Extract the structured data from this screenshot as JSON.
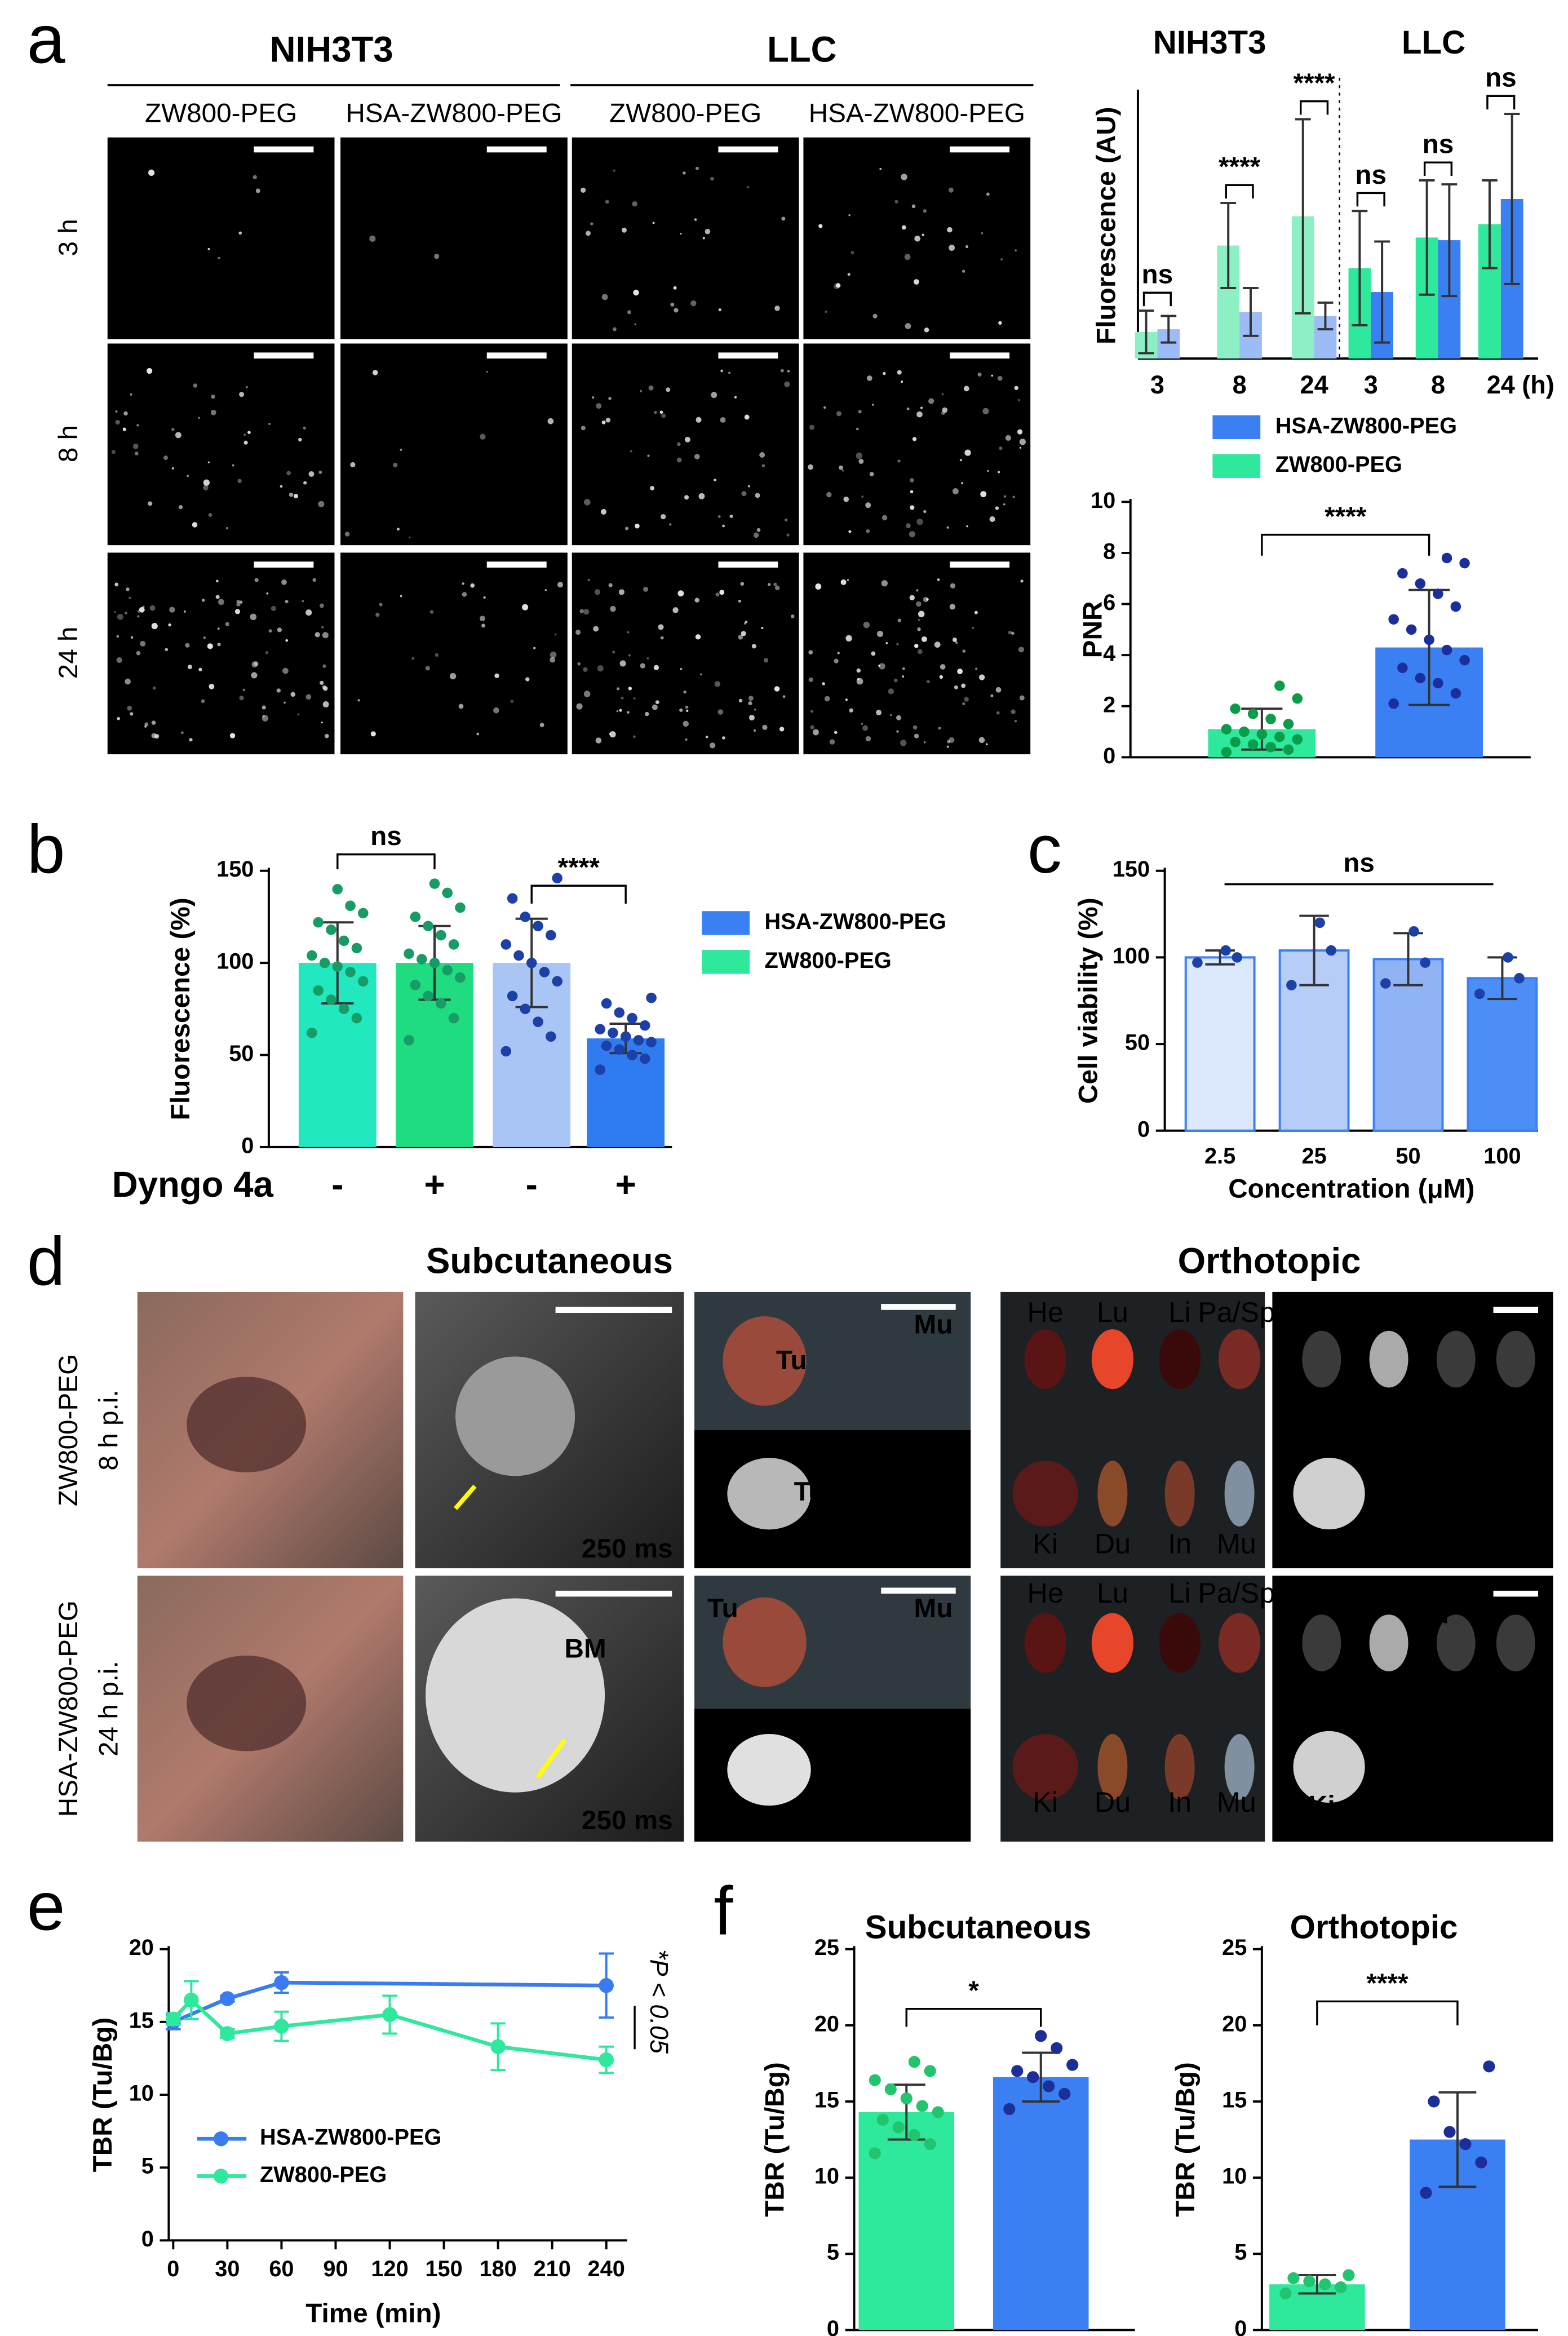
{
  "panel_labels": [
    "a",
    "b",
    "c",
    "d",
    "e",
    "f"
  ],
  "microscopy": {
    "groups": [
      "NIH3T3",
      "LLC"
    ],
    "columns": [
      "ZW800-PEG",
      "HSA-ZW800-PEG",
      "ZW800-PEG",
      "HSA-ZW800-PEG"
    ],
    "rows": [
      "3 h",
      "8 h",
      "24 h"
    ]
  },
  "imaging": {
    "titles": [
      "Subcutaneous",
      "Orthotopic"
    ],
    "rows": [
      [
        "ZW800-PEG",
        "8 h p.i."
      ],
      [
        "HSA-ZW800-PEG",
        "24 h p.i."
      ]
    ],
    "exposure": "250 ms",
    "tumor": "Tu",
    "bone_marrow": "BM",
    "organs": [
      "He",
      "Lu",
      "Li",
      "Pa/Sp",
      "Ki",
      "Du",
      "In",
      "Mu"
    ]
  },
  "chart_data": [
    {
      "type": "bar",
      "groups": [
        "NIH3T3",
        "LLC"
      ],
      "categories": [
        "3",
        "8",
        "24",
        "3",
        "8",
        "24"
      ],
      "x_unit": "(h)",
      "ylabel": "Fluorescence (AU)",
      "ylim": [
        0,
        2
      ],
      "series": [
        {
          "name": "ZW800-PEG",
          "color": "#2ee89c",
          "colors": [
            "#8df0c4",
            "#8df0c4",
            "#8df0c4",
            "#2ee89c",
            "#2ee89c",
            "#2ee89c"
          ],
          "values": [
            0.2,
            0.85,
            1.07,
            0.68,
            0.91,
            1.01
          ],
          "errors": [
            0.16,
            0.32,
            0.73,
            0.43,
            0.43,
            0.33
          ]
        },
        {
          "name": "HSA-ZW800-PEG",
          "color": "#3a80f2",
          "colors": [
            "#9dbcf5",
            "#9dbcf5",
            "#9dbcf5",
            "#3a80f2",
            "#3a80f2",
            "#3a80f2"
          ],
          "values": [
            0.22,
            0.35,
            0.32,
            0.5,
            0.89,
            1.2
          ],
          "errors": [
            0.1,
            0.18,
            0.1,
            0.38,
            0.42,
            0.64
          ]
        }
      ],
      "significance": [
        "ns",
        "****",
        "****",
        "ns",
        "ns",
        "ns"
      ]
    },
    {
      "type": "bar",
      "ylabel": "PNR",
      "categories": [
        null,
        null
      ],
      "values": [
        1.1,
        4.3
      ],
      "errors": [
        0.8,
        2.25
      ],
      "colors": [
        "#2ee89c",
        "#3a80f2"
      ],
      "point_colors": [
        "#0b9c4a",
        "#1a2f9c"
      ],
      "points": [
        [
          0.2,
          0.3,
          0.4,
          0.5,
          0.6,
          0.7,
          0.8,
          0.9,
          1.0,
          1.1,
          1.3,
          1.5,
          1.7,
          1.9,
          2.3,
          2.8
        ],
        [
          2.1,
          2.5,
          2.9,
          3.1,
          3.5,
          3.8,
          4.2,
          4.6,
          5.0,
          5.4,
          5.9,
          6.4,
          6.8,
          7.2,
          7.6,
          7.8
        ]
      ],
      "ylim": [
        0,
        10
      ],
      "yticks": [
        0,
        2,
        4,
        6,
        8,
        10
      ],
      "significance": "****"
    },
    {
      "type": "bar",
      "ylabel": "Fluorescence (%)",
      "row_label": "Dyngo 4a",
      "categories": [
        "-",
        "+",
        "-",
        "+"
      ],
      "values": [
        100,
        100,
        100,
        59
      ],
      "errors": [
        22,
        20,
        24,
        8
      ],
      "colors": [
        "#22e8c0",
        "#1fdc80",
        "#a9c5f5",
        "#2f7bf0"
      ],
      "point_colors": [
        "#169c64",
        "#169c64",
        "#1d3fa8",
        "#1d3fa8"
      ],
      "points": [
        [
          62,
          70,
          75,
          80,
          85,
          90,
          95,
          98,
          100,
          104,
          108,
          112,
          118,
          122,
          127,
          131,
          140
        ],
        [
          58,
          70,
          78,
          82,
          88,
          92,
          96,
          100,
          102,
          105,
          110,
          115,
          120,
          125,
          130,
          138,
          143
        ],
        [
          52,
          60,
          68,
          75,
          82,
          90,
          95,
          100,
          104,
          110,
          115,
          120,
          125,
          135,
          146
        ],
        [
          42,
          48,
          50,
          53,
          55,
          57,
          58,
          60,
          62,
          64,
          66,
          70,
          73,
          78,
          81
        ]
      ],
      "ylim": [
        0,
        150
      ],
      "yticks": [
        0,
        50,
        100,
        150
      ],
      "significance": [
        "ns",
        "****"
      ],
      "legend": [
        {
          "name": "HSA-ZW800-PEG",
          "color": "#3a80f2"
        },
        {
          "name": "ZW800-PEG",
          "color": "#2ee89c"
        }
      ]
    },
    {
      "type": "bar",
      "ylabel": "Cell viability (%)",
      "xlabel": "Concentration (μM)",
      "categories": [
        "2.5",
        "25",
        "50",
        "100"
      ],
      "values": [
        100,
        104,
        99,
        88
      ],
      "errors": [
        4,
        20,
        15,
        12
      ],
      "colors": [
        "#dce8fc",
        "#b5cdf7",
        "#8fb3f3",
        "#4c8ef5"
      ],
      "edge_color": "#3a80f2",
      "point_colors": [
        "#1d3fa8",
        "#1d3fa8",
        "#1d3fa8",
        "#1d3fa8"
      ],
      "points": [
        [
          97,
          100,
          104
        ],
        [
          84,
          104,
          120
        ],
        [
          85,
          97,
          115
        ],
        [
          79,
          88,
          100
        ]
      ],
      "ylim": [
        0,
        150
      ],
      "yticks": [
        0,
        50,
        100,
        150
      ],
      "significance": "ns"
    },
    {
      "type": "line",
      "ylabel": "TBR (Tu/Bg)",
      "xlabel": "Time (min)",
      "xlim": [
        0,
        240
      ],
      "xticks": [
        0,
        30,
        60,
        90,
        120,
        150,
        180,
        210,
        240
      ],
      "ylim": [
        0,
        20
      ],
      "yticks": [
        0,
        5,
        10,
        15,
        20
      ],
      "series": [
        {
          "name": "HSA-ZW800-PEG",
          "color": "#3a7cf0",
          "x": [
            0,
            30,
            60,
            240
          ],
          "values": [
            15,
            16.6,
            17.7,
            17.5
          ],
          "errors": [
            0.5,
            0.2,
            0.7,
            2.2
          ]
        },
        {
          "name": "ZW800-PEG",
          "color": "#2ee89c",
          "x": [
            0,
            10,
            30,
            60,
            120,
            180,
            240
          ],
          "values": [
            15.2,
            16.5,
            14.2,
            14.7,
            15.5,
            13.3,
            12.4
          ],
          "errors": [
            0.4,
            1.3,
            0.3,
            1.0,
            1.3,
            1.6,
            0.9
          ]
        }
      ],
      "annotation": "*P < 0.05"
    },
    {
      "type": "bar",
      "title": "Subcutaneous",
      "ylabel": "TBR (Tu/Bg)",
      "categories": [
        null,
        null
      ],
      "values": [
        14.3,
        16.6
      ],
      "errors": [
        1.8,
        1.6
      ],
      "colors": [
        "#2ee89c",
        "#3a80f2"
      ],
      "point_colors": [
        "#22c46e",
        "#1c2f98"
      ],
      "points": [
        [
          11.6,
          12.2,
          12.8,
          13.3,
          13.8,
          14.3,
          14.7,
          15.2,
          15.8,
          16.4,
          17.0,
          17.6
        ],
        [
          14.5,
          15.5,
          16.0,
          16.6,
          17.0,
          17.4,
          18.5,
          19.3
        ]
      ],
      "ylim": [
        0,
        25
      ],
      "yticks": [
        0,
        5,
        10,
        15,
        20,
        25
      ],
      "significance": "*"
    },
    {
      "type": "bar",
      "title": "Orthotopic",
      "ylabel": "TBR (Tu/Bg)",
      "categories": [
        null,
        null
      ],
      "values": [
        3.0,
        12.5
      ],
      "errors": [
        0.6,
        3.1
      ],
      "colors": [
        "#2ee89c",
        "#3a80f2"
      ],
      "point_colors": [
        "#22c46e",
        "#1c2f98"
      ],
      "points": [
        [
          2.4,
          2.8,
          3.0,
          3.2,
          3.4,
          3.6
        ],
        [
          9.0,
          11.0,
          12.2,
          13.0,
          15.0,
          17.3
        ]
      ],
      "ylim": [
        0,
        25
      ],
      "yticks": [
        0,
        5,
        10,
        15,
        20,
        25
      ],
      "significance": "****"
    }
  ]
}
